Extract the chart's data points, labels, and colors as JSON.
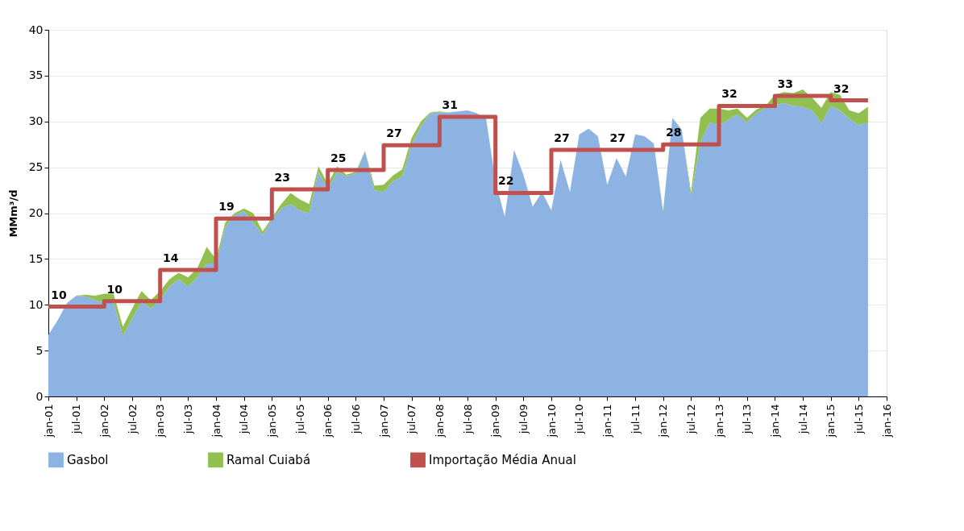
{
  "chart_data": {
    "type": "area",
    "stacked": true,
    "ylabel": "MMm³/d",
    "legend": "bottom",
    "grid": "y",
    "ylim": [
      0,
      40
    ],
    "yticks": [
      0,
      5,
      10,
      15,
      20,
      25,
      30,
      35,
      40
    ],
    "xlim": [
      "2001-01",
      "2016-01"
    ],
    "xticks": [
      {
        "value": "2001-01",
        "label": "jan-01"
      },
      {
        "value": "2001-07",
        "label": "jul-01"
      },
      {
        "value": "2002-01",
        "label": "jan-02"
      },
      {
        "value": "2002-07",
        "label": "jul-02"
      },
      {
        "value": "2003-01",
        "label": "jan-03"
      },
      {
        "value": "2003-07",
        "label": "jul-03"
      },
      {
        "value": "2004-01",
        "label": "jan-04"
      },
      {
        "value": "2004-07",
        "label": "jul-04"
      },
      {
        "value": "2005-01",
        "label": "jan-05"
      },
      {
        "value": "2005-07",
        "label": "jul-05"
      },
      {
        "value": "2006-01",
        "label": "jan-06"
      },
      {
        "value": "2006-07",
        "label": "jul-06"
      },
      {
        "value": "2007-01",
        "label": "jan-07"
      },
      {
        "value": "2007-07",
        "label": "jul-07"
      },
      {
        "value": "2008-01",
        "label": "jan-08"
      },
      {
        "value": "2008-07",
        "label": "jul-08"
      },
      {
        "value": "2009-01",
        "label": "jan-09"
      },
      {
        "value": "2009-07",
        "label": "jul-09"
      },
      {
        "value": "2010-01",
        "label": "jan-10"
      },
      {
        "value": "2010-07",
        "label": "jul-10"
      },
      {
        "value": "2011-01",
        "label": "jan-11"
      },
      {
        "value": "2011-07",
        "label": "jul-11"
      },
      {
        "value": "2012-01",
        "label": "jan-12"
      },
      {
        "value": "2012-07",
        "label": "jul-12"
      },
      {
        "value": "2013-01",
        "label": "jan-13"
      },
      {
        "value": "2013-07",
        "label": "jul-13"
      },
      {
        "value": "2014-01",
        "label": "jan-14"
      },
      {
        "value": "2014-07",
        "label": "jul-14"
      },
      {
        "value": "2015-01",
        "label": "jan-15"
      },
      {
        "value": "2015-07",
        "label": "jul-15"
      },
      {
        "value": "2016-01",
        "label": "jan-16"
      }
    ],
    "x": [
      "2001-01",
      "2001-03",
      "2001-05",
      "2001-07",
      "2001-09",
      "2001-11",
      "2002-01",
      "2002-03",
      "2002-05",
      "2002-07",
      "2002-09",
      "2002-11",
      "2003-01",
      "2003-03",
      "2003-05",
      "2003-07",
      "2003-09",
      "2003-11",
      "2004-01",
      "2004-03",
      "2004-05",
      "2004-07",
      "2004-09",
      "2004-11",
      "2005-01",
      "2005-03",
      "2005-05",
      "2005-07",
      "2005-09",
      "2005-11",
      "2006-01",
      "2006-03",
      "2006-05",
      "2006-07",
      "2006-09",
      "2006-11",
      "2007-01",
      "2007-03",
      "2007-05",
      "2007-07",
      "2007-09",
      "2007-11",
      "2008-01",
      "2008-03",
      "2008-05",
      "2008-07",
      "2008-09",
      "2008-11",
      "2009-01",
      "2009-03",
      "2009-05",
      "2009-07",
      "2009-09",
      "2009-11",
      "2010-01",
      "2010-03",
      "2010-05",
      "2010-07",
      "2010-09",
      "2010-11",
      "2011-01",
      "2011-03",
      "2011-05",
      "2011-07",
      "2011-09",
      "2011-11",
      "2012-01",
      "2012-03",
      "2012-05",
      "2012-07",
      "2012-09",
      "2012-11",
      "2013-01",
      "2013-03",
      "2013-05",
      "2013-07",
      "2013-09",
      "2013-11",
      "2014-01",
      "2014-03",
      "2014-05",
      "2014-07",
      "2014-09",
      "2014-11",
      "2015-01",
      "2015-03",
      "2015-05",
      "2015-07",
      "2015-09"
    ],
    "series": [
      {
        "name": "Gasbol",
        "color": "#8db3e2",
        "values": [
          6.7,
          8.3,
          10.2,
          11.0,
          10.9,
          10.5,
          10.2,
          10.3,
          6.6,
          8.5,
          10.3,
          9.6,
          10.5,
          12.0,
          12.8,
          12.0,
          13.0,
          14.5,
          14.5,
          18.5,
          19.8,
          20.2,
          19.0,
          17.6,
          19.3,
          20.5,
          21.0,
          20.3,
          20.0,
          24.5,
          22.6,
          24.5,
          24.0,
          24.3,
          26.8,
          22.5,
          22.3,
          23.5,
          24.0,
          27.5,
          29.5,
          30.9,
          31.0,
          31.0,
          31.1,
          31.2,
          30.9,
          30.3,
          23.5,
          19.6,
          26.9,
          24.2,
          20.7,
          22.3,
          20.3,
          25.8,
          22.3,
          28.6,
          29.2,
          28.4,
          23.1,
          26.0,
          24.0,
          28.6,
          28.4,
          27.6,
          20.2,
          30.4,
          29.1,
          21.8,
          27.8,
          29.9,
          29.6,
          30.2,
          30.8,
          29.9,
          30.9,
          31.5,
          31.8,
          32.0,
          31.7,
          31.6,
          31.2,
          29.8,
          31.7,
          31.2,
          30.3,
          29.6,
          29.9
        ]
      },
      {
        "name": "Ramal Cuiabá",
        "color": "#92c050",
        "values": [
          0,
          0,
          0,
          0,
          0.2,
          0.5,
          1.0,
          0.9,
          1.0,
          1.1,
          1.2,
          0.9,
          1.0,
          0.8,
          0.7,
          1.0,
          1.0,
          1.8,
          0.5,
          0.5,
          0.2,
          0.3,
          1.0,
          0.4,
          0.2,
          0.5,
          1.2,
          1.2,
          1.0,
          0.6,
          0.6,
          0.6,
          0.2,
          0.2,
          0,
          0.5,
          0.8,
          0.6,
          0.8,
          0.7,
          0.5,
          0.1,
          0.1,
          0,
          0,
          0,
          0,
          0,
          0,
          0,
          0,
          0,
          0,
          0,
          0,
          0,
          0,
          0,
          0,
          0,
          0,
          0,
          0,
          0,
          0,
          0,
          0,
          0,
          0,
          0.5,
          2.6,
          1.5,
          1.8,
          1.0,
          0.6,
          0.5,
          0.4,
          0.2,
          1.1,
          1.2,
          1.4,
          1.9,
          1.4,
          1.7,
          1.5,
          1.7,
          0.9,
          1.3,
          1.7
        ]
      },
      {
        "name": "Importação Média Anual",
        "type": "step",
        "color": "#c0504d",
        "x": [
          "2001-01",
          "2002-01",
          "2003-01",
          "2004-01",
          "2005-01",
          "2006-01",
          "2007-01",
          "2008-01",
          "2009-01",
          "2010-01",
          "2011-01",
          "2012-01",
          "2013-01",
          "2014-01",
          "2015-01",
          "2015-09"
        ],
        "values": [
          9.8,
          10.4,
          13.8,
          19.4,
          22.6,
          24.7,
          27.4,
          30.5,
          22.2,
          26.9,
          26.9,
          27.5,
          31.7,
          32.8,
          32.3,
          32.3
        ],
        "value_labels": [
          "10",
          "10",
          "14",
          "19",
          "23",
          "25",
          "27",
          "31",
          "22",
          "27",
          "27",
          "28",
          "32",
          "33",
          "32",
          null
        ]
      }
    ]
  }
}
